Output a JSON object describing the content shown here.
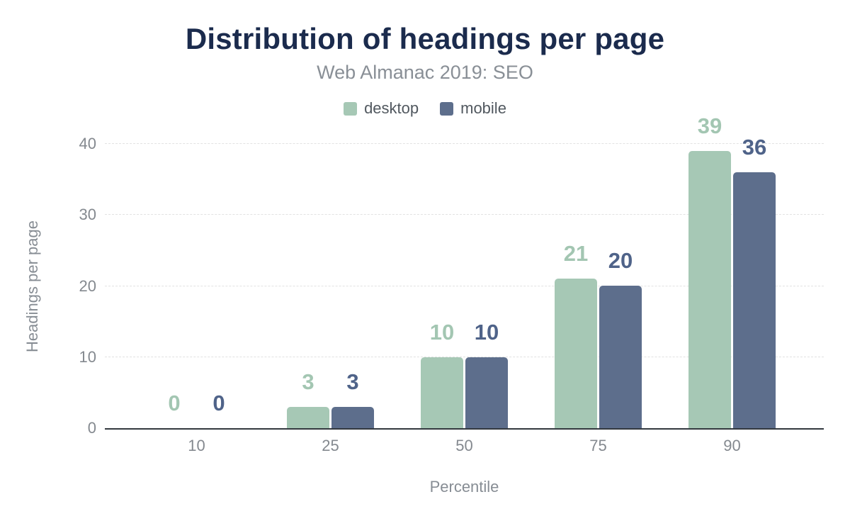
{
  "chart_data": {
    "type": "bar",
    "title": "Distribution of headings per page",
    "subtitle": "Web Almanac 2019: SEO",
    "categories": [
      "10",
      "25",
      "50",
      "75",
      "90"
    ],
    "series": [
      {
        "name": "desktop",
        "color": "#a6c8b5",
        "label_color": "#a3c6b2",
        "values": [
          0,
          3,
          10,
          21,
          39
        ]
      },
      {
        "name": "mobile",
        "color": "#5d6e8c",
        "label_color": "#4f6389",
        "values": [
          0,
          3,
          10,
          20,
          36
        ]
      }
    ],
    "xlabel": "Percentile",
    "ylabel": "Headings per page",
    "ylim": [
      0,
      40
    ],
    "yticks": [
      0,
      10,
      20,
      30,
      40
    ],
    "grid": true,
    "gridline_style": "dashed",
    "legend_position": "top",
    "bar_value_labels": true
  },
  "colors": {
    "title_text": "#1b2b4d",
    "muted_text": "#84898f",
    "axis_title_text": "#878d94",
    "legend_text": "#51585f",
    "axis_line": "#33393f",
    "gridline": "#e2e2e2",
    "desktop_series": "#a6c8b5",
    "mobile_series": "#5d6e8c",
    "background": "#ffffff"
  }
}
